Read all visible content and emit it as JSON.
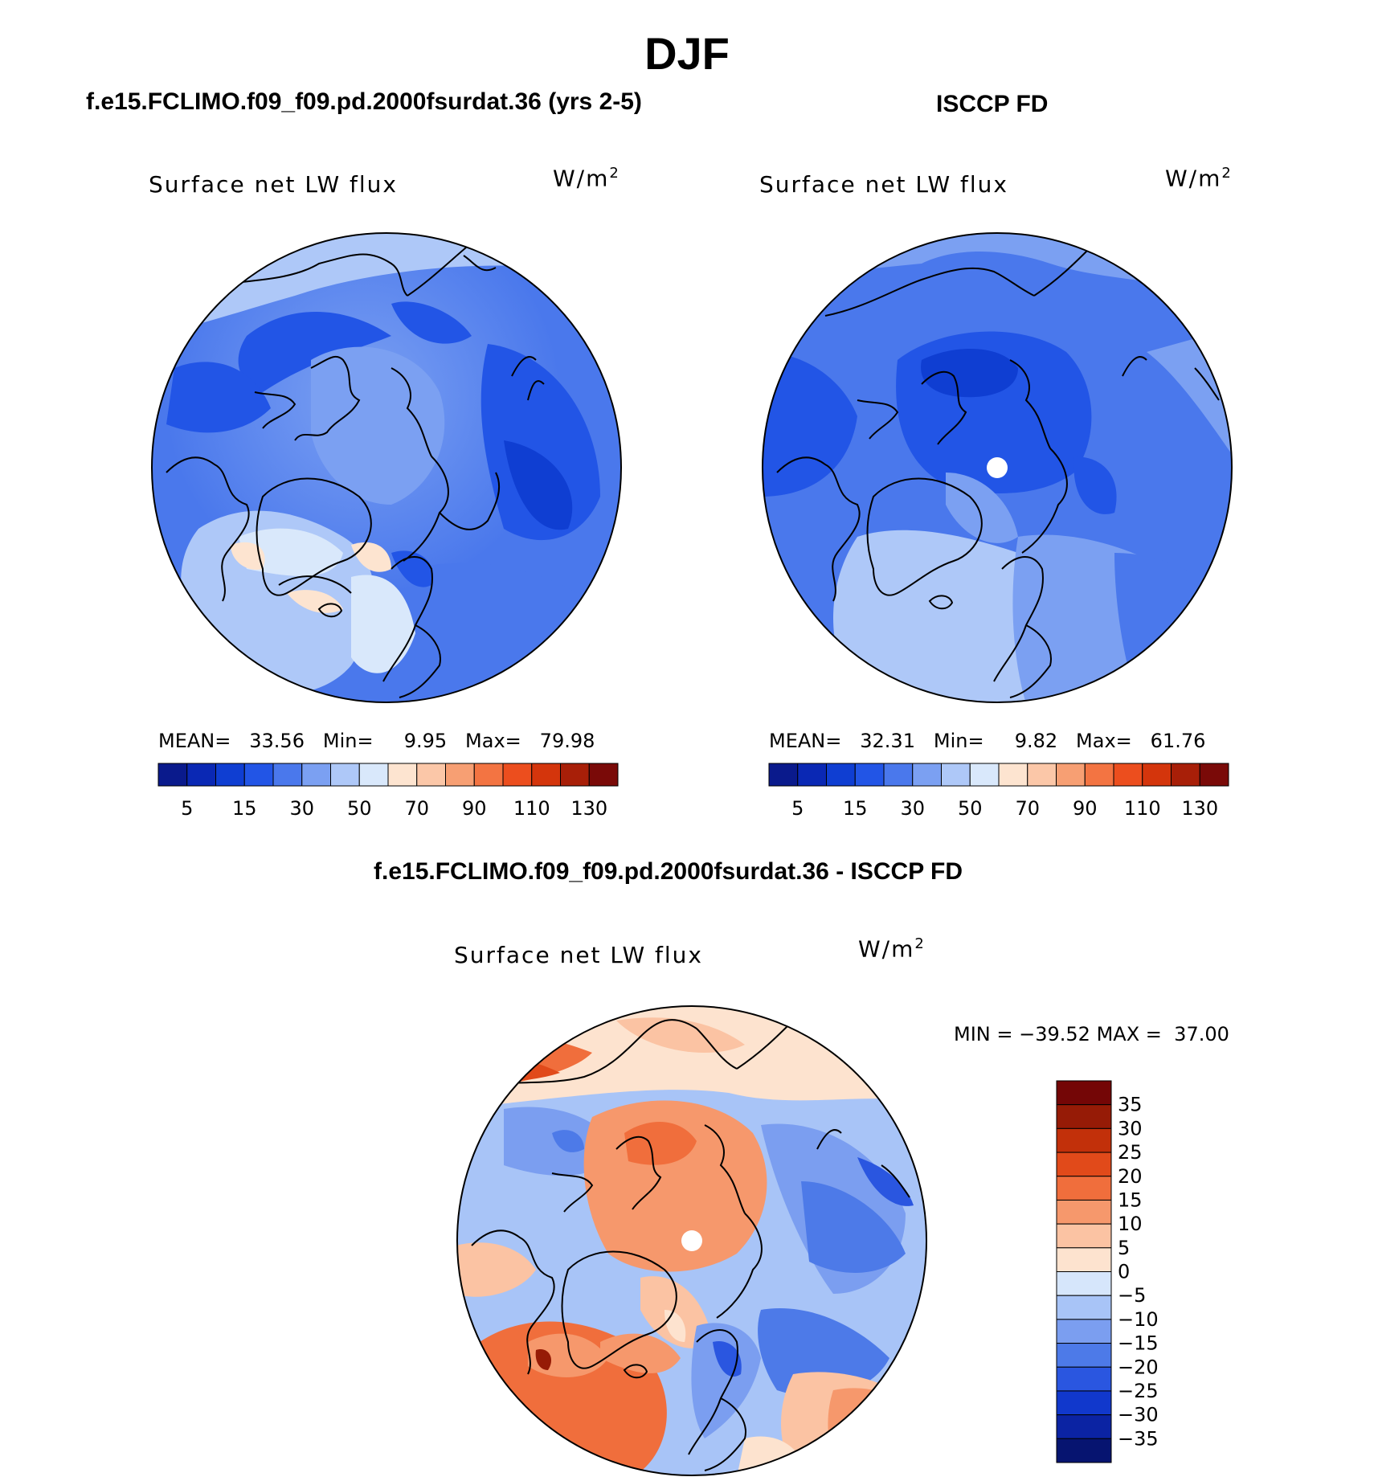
{
  "title": "DJF",
  "panels": {
    "model": {
      "title": "f.e15.FCLIMO.f09_f09.pd.2000fsurdat.36 (yrs 2-5)",
      "variable": "Surface net LW flux",
      "units_base": "W/m",
      "units_exp": "2",
      "stats": {
        "mean_label": "MEAN=",
        "mean": "33.56",
        "min_label": "Min=",
        "min": "9.95",
        "max_label": "Max=",
        "max": "79.98"
      }
    },
    "obs": {
      "title": "ISCCP FD",
      "variable": "Surface net LW flux",
      "units_base": "W/m",
      "units_exp": "2",
      "stats": {
        "mean_label": "MEAN=",
        "mean": "32.31",
        "min_label": "Min=",
        "min": "9.82",
        "max_label": "Max=",
        "max": "61.76"
      }
    },
    "diff": {
      "title": "f.e15.FCLIMO.f09_f09.pd.2000fsurdat.36 - ISCCP FD",
      "variable": "Surface net LW flux",
      "units_base": "W/m",
      "units_exp": "2",
      "stats": {
        "min_label": "MIN =",
        "min": "−39.52",
        "max_label": "MAX =",
        "max": "37.00"
      }
    }
  },
  "colors": {
    "abs_scale": [
      "#0a1a8c",
      "#0a28b4",
      "#0f3ed2",
      "#2255e6",
      "#4a78ec",
      "#7ba0f2",
      "#aec8f8",
      "#d9e8fb",
      "#fde4d0",
      "#fbc7a8",
      "#f79f73",
      "#f37442",
      "#ec4e1e",
      "#d4350c",
      "#a81f08",
      "#7a0a08"
    ],
    "diff_scale": [
      "#061470",
      "#0b23a3",
      "#1138cc",
      "#2a56e0",
      "#4d7ae8",
      "#7b9ef0",
      "#a8c4f7",
      "#d6e6fb",
      "#fde3cf",
      "#fbc3a3",
      "#f6986c",
      "#f06e3c",
      "#e14a1a",
      "#c2300a",
      "#961b06",
      "#740606"
    ],
    "outline": "#000000"
  },
  "chart_data": [
    {
      "type": "heatmap",
      "name": "model-colorbar",
      "projection": "north-polar-stereographic",
      "title": "Surface net LW flux",
      "units": "W/m2",
      "levels_labels": [
        "5",
        "15",
        "30",
        "50",
        "70",
        "90",
        "110",
        "130"
      ],
      "levels": [
        5,
        10,
        15,
        20,
        30,
        40,
        50,
        60,
        70,
        80,
        90,
        100,
        110,
        120,
        130
      ],
      "mean": 33.56,
      "min": 9.95,
      "max": 79.98
    },
    {
      "type": "heatmap",
      "name": "obs-colorbar",
      "projection": "north-polar-stereographic",
      "title": "Surface net LW flux",
      "units": "W/m2",
      "levels_labels": [
        "5",
        "15",
        "30",
        "50",
        "70",
        "90",
        "110",
        "130"
      ],
      "levels": [
        5,
        10,
        15,
        20,
        30,
        40,
        50,
        60,
        70,
        80,
        90,
        100,
        110,
        120,
        130
      ],
      "mean": 32.31,
      "min": 9.82,
      "max": 61.76
    },
    {
      "type": "heatmap",
      "name": "diff-colorbar",
      "projection": "north-polar-stereographic",
      "title": "Surface net LW flux",
      "units": "W/m2",
      "levels_labels": [
        "35",
        "30",
        "25",
        "20",
        "15",
        "10",
        "5",
        "0",
        "−5",
        "−10",
        "−15",
        "−20",
        "−25",
        "−30",
        "−35"
      ],
      "levels": [
        35,
        30,
        25,
        20,
        15,
        10,
        5,
        0,
        -5,
        -10,
        -15,
        -20,
        -25,
        -30,
        -35
      ],
      "min": -39.52,
      "max": 37.0
    }
  ]
}
